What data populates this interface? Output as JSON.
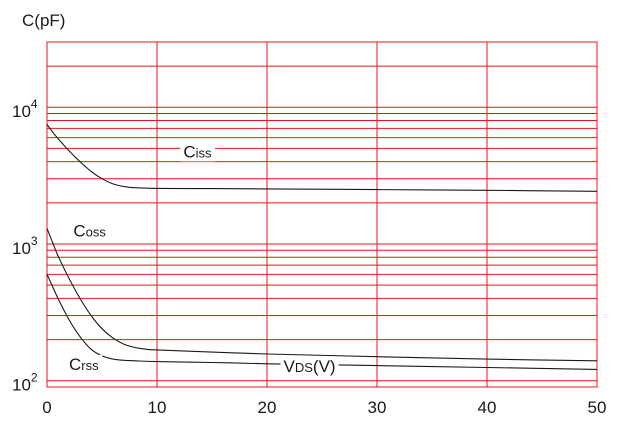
{
  "chart_data": {
    "type": "line",
    "ylabel": "C(pF)",
    "xlabel": "VDS(V)",
    "x_ticks": [
      0,
      10,
      20,
      30,
      40,
      50
    ],
    "y_ticks": [
      {
        "value": 100,
        "base": "10",
        "exp": "2"
      },
      {
        "value": 1000,
        "base": "10",
        "exp": "3"
      },
      {
        "value": 10000,
        "base": "10",
        "exp": "4"
      }
    ],
    "xlim": [
      0,
      50
    ],
    "ylim": [
      90,
      30000
    ],
    "y_scale": "log",
    "grid": true,
    "colors": {
      "grid": "#e8141c",
      "line": "#1a1a1a",
      "text": "#1a1a1a"
    },
    "series": [
      {
        "name": "Ciss",
        "x": [
          0,
          0.5,
          1,
          2,
          3,
          4,
          5,
          6,
          7,
          8,
          10,
          15,
          20,
          30,
          40,
          50
        ],
        "y": [
          7500,
          6600,
          5900,
          4800,
          4000,
          3400,
          3000,
          2750,
          2630,
          2580,
          2550,
          2540,
          2530,
          2500,
          2470,
          2430
        ]
      },
      {
        "name": "Coss",
        "x": [
          0,
          0.5,
          1,
          2,
          3,
          4,
          5,
          6,
          7,
          8,
          9,
          10,
          15,
          20,
          30,
          40,
          50
        ],
        "y": [
          1300,
          1030,
          820,
          560,
          400,
          300,
          240,
          205,
          185,
          175,
          170,
          168,
          162,
          157,
          150,
          144,
          140
        ]
      },
      {
        "name": "Crss",
        "x": [
          0,
          0.5,
          1,
          2,
          3,
          4,
          5,
          6,
          7,
          8,
          10,
          15,
          20,
          30,
          40,
          50
        ],
        "y": [
          600,
          490,
          400,
          280,
          210,
          170,
          152,
          144,
          141,
          140,
          138,
          136,
          133,
          129,
          125,
          121
        ]
      }
    ],
    "annotations": [
      {
        "main": "C",
        "sub": "iss",
        "x": 12.4,
        "y": 4300
      },
      {
        "main": "C",
        "sub": "oss",
        "x": 2.4,
        "y": 1130
      },
      {
        "main": "C",
        "sub": "rss",
        "x": 2.0,
        "y": 120
      },
      {
        "main": "V",
        "sub": "DS",
        "rest": "(V)",
        "x": 21.5,
        "y": 116
      }
    ]
  }
}
